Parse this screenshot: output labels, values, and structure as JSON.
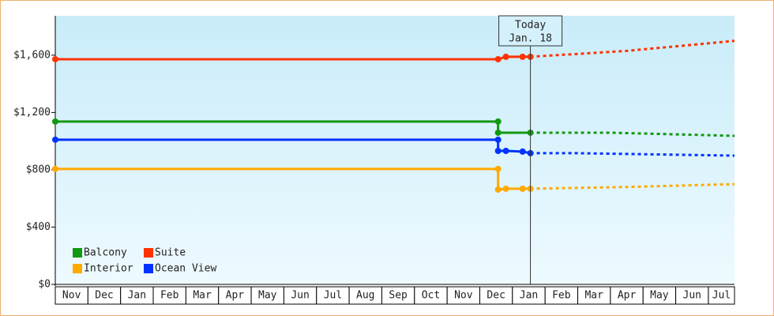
{
  "chart_data": {
    "type": "line",
    "ylim": [
      0,
      1875
    ],
    "yticks": [
      {
        "value": 0,
        "label": "$0"
      },
      {
        "value": 400,
        "label": "$400"
      },
      {
        "value": 800,
        "label": "$800"
      },
      {
        "value": 1200,
        "label": "$1,200"
      },
      {
        "value": 1600,
        "label": "$1,600"
      }
    ],
    "xlim": [
      0,
      20.8
    ],
    "xticks": [
      {
        "value": 0,
        "label": "Nov"
      },
      {
        "value": 1,
        "label": "Dec"
      },
      {
        "value": 2,
        "label": "Jan"
      },
      {
        "value": 3,
        "label": "Feb"
      },
      {
        "value": 4,
        "label": "Mar"
      },
      {
        "value": 5,
        "label": "Apr"
      },
      {
        "value": 6,
        "label": "May"
      },
      {
        "value": 7,
        "label": "Jun"
      },
      {
        "value": 8,
        "label": "Jul"
      },
      {
        "value": 9,
        "label": "Aug"
      },
      {
        "value": 10,
        "label": "Sep"
      },
      {
        "value": 11,
        "label": "Oct"
      },
      {
        "value": 12,
        "label": "Nov"
      },
      {
        "value": 13,
        "label": "Dec"
      },
      {
        "value": 14,
        "label": "Jan"
      },
      {
        "value": 15,
        "label": "Feb"
      },
      {
        "value": 16,
        "label": "Mar"
      },
      {
        "value": 17,
        "label": "Apr"
      },
      {
        "value": 18,
        "label": "May"
      },
      {
        "value": 19,
        "label": "Jun"
      },
      {
        "value": 20,
        "label": "Jul"
      }
    ],
    "today": {
      "x": 14.55,
      "label": [
        "Today",
        "Jan. 18"
      ]
    },
    "legend": "lower left",
    "series": [
      {
        "name": "Balcony",
        "color": "#119911",
        "x": [
          0,
          13.56,
          13.56,
          14.55
        ],
        "values": [
          1137,
          1137,
          1059,
          1059
        ],
        "forecast": {
          "x": [
            14.55,
            17,
            20.8
          ],
          "values": [
            1059,
            1059,
            1037
          ]
        }
      },
      {
        "name": "Suite",
        "color": "#ff3300",
        "x": [
          0,
          13.56,
          13.8,
          14.31,
          14.55
        ],
        "values": [
          1572,
          1572,
          1589,
          1589,
          1589
        ],
        "forecast": {
          "x": [
            14.55,
            17.5,
            20.8
          ],
          "values": [
            1589,
            1630,
            1700
          ]
        }
      },
      {
        "name": "Interior",
        "color": "#ffaa00",
        "x": [
          0,
          13.56,
          13.56,
          13.8,
          14.31,
          14.55
        ],
        "values": [
          806,
          806,
          662,
          668,
          668,
          668
        ],
        "forecast": {
          "x": [
            14.55,
            17.5,
            20.8
          ],
          "values": [
            668,
            680,
            700
          ]
        }
      },
      {
        "name": "Ocean View",
        "color": "#0033ff",
        "x": [
          0,
          13.56,
          13.56,
          13.8,
          14.31,
          14.55
        ],
        "values": [
          1010,
          1010,
          932,
          932,
          927,
          916
        ],
        "forecast": {
          "x": [
            14.55,
            16,
            20.8
          ],
          "values": [
            916,
            916,
            899
          ]
        }
      }
    ]
  }
}
